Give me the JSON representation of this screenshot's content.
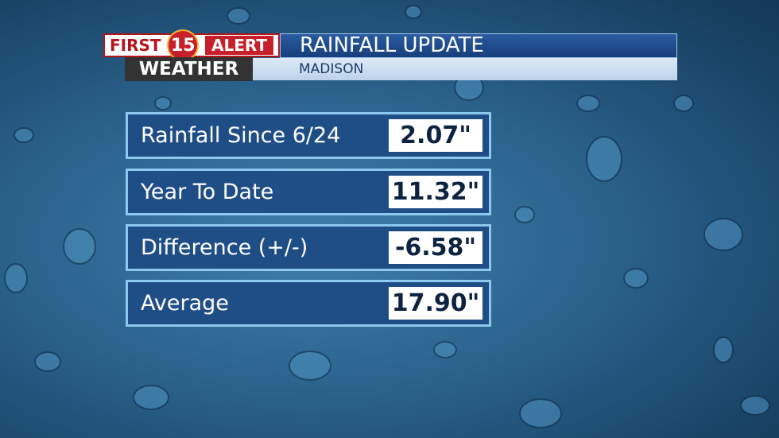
{
  "logo": {
    "first": "FIRST",
    "number": "15",
    "alert": "ALERT",
    "weather": "WEATHER"
  },
  "header": {
    "title": "RAINFALL UPDATE",
    "subtitle": "MADISON"
  },
  "table": {
    "rows": [
      [
        "Rainfall Since 6/24",
        "2.07\""
      ],
      [
        "Year To Date",
        "11.32\""
      ],
      [
        "Difference (+/-)",
        "-6.58\""
      ],
      [
        "Average",
        "17.90\""
      ]
    ]
  }
}
